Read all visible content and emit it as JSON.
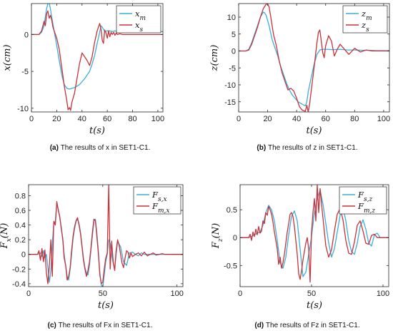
{
  "colors": {
    "series_master": "#3aaed8",
    "series_slave": "#c8323a"
  },
  "chart_data": [
    {
      "id": "a",
      "type": "line",
      "caption_label": "(a)",
      "caption_text": "The results of x in SET1-C1.",
      "xlabel": "t(s)",
      "ylabel": "x(cm)",
      "xlim": [
        0,
        104
      ],
      "ylim": [
        -10.5,
        4.2
      ],
      "xticks": [
        0,
        20,
        40,
        60,
        80,
        100
      ],
      "yticks": [
        -10,
        -5,
        0
      ],
      "legend_position": "top-right",
      "series": [
        {
          "name": "x_m",
          "color": "#3aaed8",
          "x": [
            0,
            6,
            8,
            10,
            12,
            13,
            14,
            15,
            16,
            18,
            20,
            22,
            24,
            26,
            28,
            30,
            34,
            38,
            42,
            46,
            48,
            50,
            52,
            54,
            55,
            56,
            58,
            60,
            62,
            64,
            66,
            68,
            70,
            72,
            76,
            80,
            85,
            90,
            95,
            100,
            104
          ],
          "y": [
            0,
            0,
            0.3,
            1.2,
            3.5,
            4.2,
            4.3,
            3.5,
            2.4,
            0.5,
            -1.5,
            -3.5,
            -5.5,
            -6.8,
            -7.3,
            -7.4,
            -7.2,
            -6.8,
            -6.0,
            -5.0,
            -4.0,
            -2.8,
            -1.2,
            0.3,
            1.2,
            1.0,
            0.4,
            0.5,
            0.5,
            0.4,
            0.5,
            0.4,
            0.5,
            0.4,
            0.4,
            0.4,
            0.4,
            0.4,
            0.4,
            0.4,
            0.4
          ]
        },
        {
          "name": "x_s",
          "color": "#c8323a",
          "x": [
            0,
            6,
            8,
            10,
            11,
            12,
            13,
            14,
            15,
            16,
            17,
            18,
            20,
            22,
            24,
            26,
            28,
            29,
            30,
            31,
            32,
            34,
            36,
            38,
            40,
            42,
            44,
            46,
            48,
            50,
            52,
            54,
            55,
            56,
            57,
            58,
            59,
            60,
            61,
            62,
            63,
            64,
            65,
            66,
            67,
            68,
            70,
            72,
            76,
            80,
            85,
            90,
            95,
            100,
            104
          ],
          "y": [
            0,
            0,
            0.5,
            1.8,
            1.2,
            2.8,
            3.2,
            2.2,
            2.6,
            2.0,
            1.0,
            0.5,
            -0.5,
            -2.0,
            -4.5,
            -7.0,
            -9.0,
            -10.2,
            -9.9,
            -10.3,
            -9.2,
            -8.0,
            -6.0,
            -4.0,
            -2.5,
            -3.0,
            -3.5,
            -4.2,
            -3.0,
            -1.0,
            0.5,
            1.5,
            0.8,
            -0.8,
            -1.2,
            0.6,
            0.2,
            -0.5,
            0.5,
            -0.3,
            0.3,
            0,
            0.3,
            -0.1,
            0.2,
            0,
            0.1,
            0,
            0,
            0,
            0,
            0,
            0,
            0,
            0
          ]
        }
      ]
    },
    {
      "id": "b",
      "type": "line",
      "caption_label": "(b)",
      "caption_text": "The results of z in SET1-C1.",
      "xlabel": "t(s)",
      "ylabel": "z(cm)",
      "xlim": [
        0,
        104
      ],
      "ylim": [
        -18,
        14
      ],
      "xticks": [
        0,
        20,
        40,
        60,
        80,
        100
      ],
      "yticks": [
        -15,
        -10,
        -5,
        0,
        5,
        10
      ],
      "legend_position": "top-right",
      "series": [
        {
          "name": "z_m",
          "color": "#3aaed8",
          "x": [
            0,
            5,
            7,
            9,
            11,
            13,
            15,
            17,
            18,
            19,
            21,
            23,
            25,
            27,
            29,
            31,
            33,
            35,
            37,
            39,
            41,
            43,
            45,
            46,
            47,
            48,
            50,
            52,
            54,
            56,
            58,
            60,
            65,
            70,
            75,
            80,
            85,
            90,
            95,
            100,
            104
          ],
          "y": [
            0,
            0,
            0.5,
            2.5,
            5.0,
            7.5,
            10.0,
            11.5,
            11.2,
            10.5,
            7.5,
            3.5,
            1.0,
            -1.5,
            -4.5,
            -7.0,
            -9.5,
            -11.5,
            -13.0,
            -14.0,
            -15.0,
            -15.5,
            -16.0,
            -16.2,
            -15.0,
            -12.0,
            -8.0,
            -4.0,
            -1.0,
            0.3,
            0.5,
            0.5,
            0.4,
            0.5,
            0.3,
            0.3,
            0.2,
            0.2,
            0.1,
            0.1,
            0.1
          ]
        },
        {
          "name": "z_s",
          "color": "#c8323a",
          "x": [
            0,
            5,
            7,
            9,
            11,
            13,
            15,
            17,
            19,
            20,
            21,
            22,
            24,
            26,
            28,
            30,
            32,
            34,
            36,
            38,
            40,
            42,
            44,
            46,
            47,
            48,
            49,
            50,
            52,
            54,
            55,
            56,
            57,
            58,
            59,
            60,
            62,
            64,
            66,
            68,
            70,
            72,
            76,
            80,
            84,
            88,
            92,
            96,
            100,
            104
          ],
          "y": [
            0,
            0,
            0.3,
            2.0,
            4.5,
            7.0,
            10.0,
            12.5,
            13.8,
            13.9,
            13.0,
            10.5,
            5.0,
            1.5,
            -3.0,
            -6.5,
            -9.0,
            -11.5,
            -11.0,
            -11.8,
            -14.0,
            -16.5,
            -17.5,
            -17.8,
            -16.0,
            -18.0,
            -15.5,
            -12.0,
            -5.0,
            2.5,
            5.5,
            6.2,
            3.0,
            -0.5,
            -2.0,
            1.5,
            4.5,
            3.0,
            -1.5,
            0.5,
            2.0,
            1.0,
            -1.0,
            0.8,
            -0.3,
            0.3,
            0,
            0,
            0,
            0
          ]
        }
      ]
    },
    {
      "id": "c",
      "type": "line",
      "caption_label": "(c)",
      "caption_text": "The results of Fx in SET1-C1.",
      "xlabel": "t(s)",
      "ylabel": "Fx(N)",
      "xlim": [
        0,
        104
      ],
      "ylim": [
        -0.44,
        0.95
      ],
      "xticks": [
        0,
        50,
        100
      ],
      "yticks": [
        -0.4,
        -0.2,
        0,
        0.2,
        0.4,
        0.6,
        0.8
      ],
      "legend_position": "top-right",
      "series": [
        {
          "name": "F_s,x",
          "color": "#3aaed8",
          "x": [
            0,
            6,
            8,
            9,
            10,
            11,
            12,
            13,
            14,
            15,
            16,
            17,
            18,
            19,
            20,
            21,
            22,
            23,
            24,
            25,
            26,
            27,
            28,
            29,
            30,
            31,
            32,
            33,
            34,
            35,
            36,
            37,
            38,
            39,
            40,
            41,
            42,
            43,
            44,
            45,
            46,
            47,
            48,
            49,
            50,
            51,
            52,
            53,
            54,
            55,
            56,
            57,
            58,
            59,
            60,
            62,
            64,
            66,
            68,
            70,
            72,
            74,
            76,
            78,
            80,
            85,
            90,
            95,
            100,
            104
          ],
          "y": [
            0,
            0,
            0.02,
            -0.03,
            0.05,
            -0.05,
            0,
            -0.18,
            -0.38,
            -0.22,
            0.15,
            0.42,
            0.45,
            0.7,
            0.62,
            0.5,
            0.38,
            0.2,
            0,
            -0.15,
            -0.3,
            -0.35,
            -0.2,
            0,
            0.22,
            0.35,
            0.45,
            0.48,
            0.42,
            0.3,
            0.12,
            -0.05,
            -0.18,
            -0.25,
            -0.28,
            -0.15,
            0.05,
            0.25,
            0.45,
            0.48,
            0.3,
            0.05,
            -0.25,
            -0.42,
            -0.45,
            -0.28,
            -0.1,
            0,
            0.2,
            0.15,
            0,
            -0.12,
            -0.2,
            0,
            0.18,
            0.1,
            -0.1,
            -0.15,
            0.02,
            0.03,
            0,
            -0.02,
            0.02,
            0,
            0,
            0,
            0,
            0,
            0,
            0
          ]
        },
        {
          "name": "F_m,x",
          "color": "#c8323a",
          "x": [
            0,
            6,
            7,
            8,
            9,
            10,
            11,
            12,
            13,
            14,
            15,
            16,
            17,
            18,
            19,
            20,
            21,
            22,
            23,
            24,
            25,
            26,
            27,
            28,
            29,
            30,
            31,
            32,
            33,
            34,
            35,
            36,
            37,
            38,
            39,
            40,
            41,
            42,
            43,
            44,
            45,
            46,
            47,
            48,
            49,
            50,
            51,
            52,
            53,
            54,
            55,
            56,
            57,
            58,
            59,
            60,
            61,
            62,
            63,
            64,
            65,
            66,
            67,
            68,
            69,
            70,
            72,
            74,
            76,
            78,
            80,
            82,
            84,
            86,
            88,
            90,
            92,
            94,
            96,
            98,
            100,
            102,
            104
          ],
          "y": [
            0,
            0,
            0.05,
            -0.08,
            0.08,
            -0.1,
            0.06,
            -0.25,
            -0.4,
            -0.15,
            0.2,
            -0.3,
            0.45,
            0.4,
            0.72,
            0.6,
            0.52,
            0.35,
            0.22,
            -0.05,
            -0.15,
            -0.35,
            -0.3,
            -0.18,
            0.05,
            0.25,
            0.38,
            0.46,
            0.5,
            0.4,
            0.28,
            0.1,
            -0.08,
            -0.2,
            -0.3,
            -0.22,
            -0.1,
            0.08,
            0.3,
            0.48,
            0.46,
            0.25,
            0.02,
            -0.28,
            -0.4,
            -0.38,
            -0.2,
            -0.05,
            0.02,
            0.95,
            -0.2,
            0.18,
            -0.1,
            -0.22,
            0.05,
            0.2,
            0.12,
            0,
            -0.12,
            -0.18,
            -0.05,
            0.05,
            0.03,
            -0.05,
            0.02,
            -0.03,
            0,
            0.02,
            -0.02,
            0.03,
            -0.02,
            0,
            0.02,
            -0.01,
            0,
            0.01,
            0,
            0,
            0,
            0,
            0,
            0,
            0
          ]
        }
      ]
    },
    {
      "id": "d",
      "type": "line",
      "caption_label": "(d)",
      "caption_text": "The results of Fz in SET1-C1.",
      "xlabel": "t(s)",
      "ylabel": "Fz(N)",
      "xlim": [
        0,
        104
      ],
      "ylim": [
        -0.88,
        0.95
      ],
      "xticks": [
        0,
        50,
        100
      ],
      "yticks": [
        -0.5,
        0,
        0.5
      ],
      "legend_position": "top-right",
      "series": [
        {
          "name": "F_s,z",
          "color": "#3aaed8",
          "x": [
            0,
            6,
            8,
            10,
            12,
            14,
            16,
            18,
            20,
            22,
            24,
            26,
            28,
            30,
            32,
            34,
            36,
            38,
            40,
            42,
            44,
            46,
            48,
            50,
            52,
            54,
            56,
            58,
            60,
            62,
            64,
            66,
            68,
            70,
            72,
            74,
            76,
            78,
            80,
            82,
            84,
            86,
            88,
            90,
            92,
            94,
            96,
            98,
            100,
            104
          ],
          "y": [
            0,
            0,
            0.02,
            0.05,
            0.08,
            0.1,
            0.22,
            0.45,
            0.58,
            0.5,
            0.3,
            -0.05,
            -0.45,
            -0.55,
            -0.35,
            0.05,
            0.38,
            0.48,
            0.3,
            -0.2,
            -0.7,
            -0.62,
            -0.3,
            0.02,
            0.45,
            0.7,
            0.85,
            0.6,
            0.25,
            -0.1,
            -0.35,
            -0.2,
            0.1,
            0.4,
            0.55,
            0.3,
            -0.05,
            -0.25,
            -0.3,
            -0.1,
            0.2,
            0.32,
            0.15,
            -0.1,
            -0.15,
            0.05,
            0.08,
            0,
            0,
            0
          ]
        },
        {
          "name": "F_m,z",
          "color": "#c8323a",
          "x": [
            0,
            6,
            7,
            8,
            9,
            10,
            11,
            12,
            13,
            14,
            15,
            16,
            17,
            18,
            19,
            20,
            21,
            22,
            23,
            24,
            25,
            26,
            27,
            28,
            29,
            30,
            31,
            32,
            33,
            34,
            35,
            36,
            37,
            38,
            39,
            40,
            41,
            42,
            43,
            44,
            45,
            46,
            47,
            48,
            49,
            50,
            51,
            52,
            53,
            54,
            55,
            56,
            57,
            58,
            59,
            60,
            62,
            64,
            66,
            68,
            70,
            72,
            74,
            76,
            78,
            80,
            82,
            84,
            86,
            88,
            90,
            92,
            94,
            96,
            98,
            100,
            104
          ],
          "y": [
            0,
            0,
            0.06,
            -0.05,
            0.1,
            0.02,
            0.15,
            0.05,
            0.2,
            0.08,
            0.12,
            0.3,
            0.25,
            0.45,
            0.4,
            0.56,
            0.5,
            0.42,
            0.28,
            0.1,
            -0.05,
            -0.2,
            -0.48,
            -0.35,
            -0.55,
            -0.45,
            -0.3,
            -0.1,
            0.1,
            0.25,
            0.42,
            0.45,
            0.38,
            0.2,
            -0.05,
            -0.3,
            -0.65,
            -0.75,
            -0.6,
            -0.4,
            -0.25,
            -0.1,
            0,
            -0.2,
            -0.8,
            0.1,
            0.45,
            0.7,
            0.3,
            0.95,
            0.45,
            0.88,
            0.6,
            0.35,
            0.1,
            -0.15,
            -0.35,
            -0.22,
            0.12,
            0.42,
            0.52,
            0.32,
            -0.05,
            -0.28,
            -0.3,
            -0.08,
            0.22,
            0.3,
            0.12,
            -0.1,
            -0.12,
            0.04,
            0.06,
            0,
            0,
            0,
            0
          ]
        }
      ]
    }
  ]
}
